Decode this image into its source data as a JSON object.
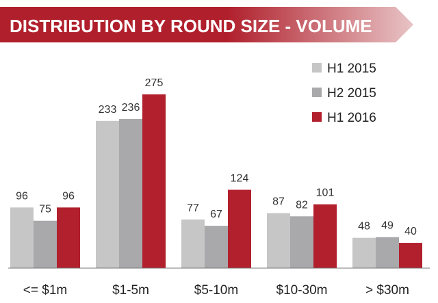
{
  "chart_data": {
    "type": "bar",
    "title": "DISTRIBUTION BY ROUND SIZE - VOLUME",
    "categories": [
      "<= $1m",
      "$1-5m",
      "$5-10m",
      "$10-30m",
      "> $30m"
    ],
    "series": [
      {
        "name": "H1 2015",
        "values": [
          96,
          233,
          77,
          87,
          48
        ],
        "color": "#c6c6c6"
      },
      {
        "name": "H2 2015",
        "values": [
          75,
          236,
          67,
          82,
          49
        ],
        "color": "#a9a9ab"
      },
      {
        "name": "H1 2016",
        "values": [
          96,
          275,
          124,
          101,
          40
        ],
        "color": "#b21f2d"
      }
    ],
    "ylim": [
      0,
      275
    ],
    "grid": false,
    "legend": "top-right",
    "banner_gradient": [
      "#b0202c",
      "#e8c4c6"
    ]
  }
}
